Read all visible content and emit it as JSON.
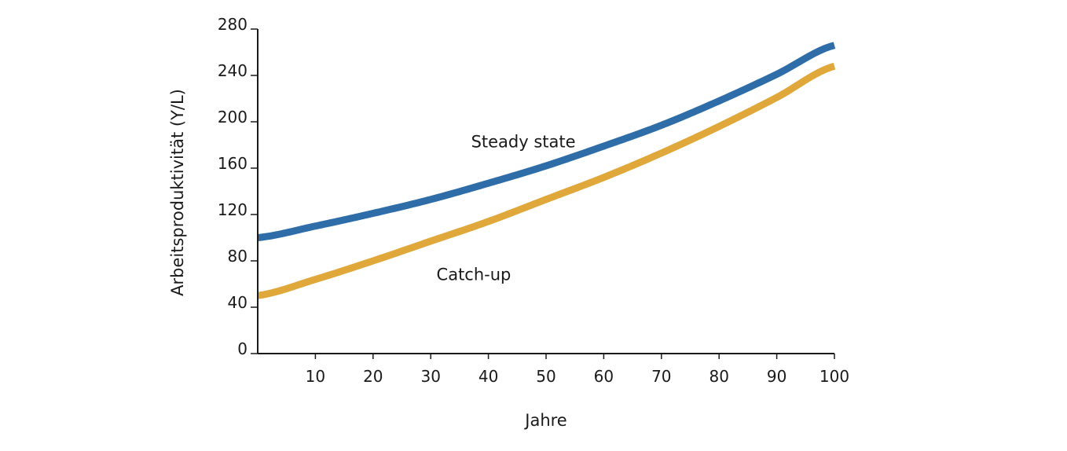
{
  "chart_data": {
    "type": "line",
    "title": "",
    "xlabel": "Jahre",
    "ylabel": "Arbeitsproduktivität (Y/L)",
    "xlim": [
      0,
      100
    ],
    "ylim": [
      0,
      280
    ],
    "x_ticks": [
      10,
      20,
      30,
      40,
      50,
      60,
      70,
      80,
      90,
      100
    ],
    "y_ticks": [
      0,
      40,
      80,
      120,
      160,
      200,
      240,
      280
    ],
    "grid": false,
    "legend": "none",
    "x": [
      0,
      10,
      20,
      30,
      40,
      50,
      60,
      70,
      80,
      90,
      100
    ],
    "series": [
      {
        "name": "Steady state",
        "color": "#2e6da8",
        "values": [
          100,
          110,
          121,
          133,
          147,
          162,
          179,
          197,
          218,
          241,
          266
        ]
      },
      {
        "name": "Catch-up",
        "color": "#e0a83a",
        "values": [
          50,
          64,
          80,
          97,
          114,
          133,
          152,
          173,
          196,
          221,
          248
        ]
      }
    ],
    "series_label_anchor_x": [
      37,
      31
    ]
  }
}
